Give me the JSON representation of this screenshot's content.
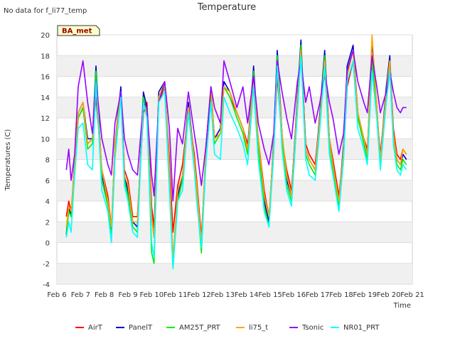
{
  "note": "No data for f_li77_temp",
  "chart_data": {
    "type": "line",
    "title": "Temperature",
    "xlabel": "Time",
    "ylabel": "Temperatures (C)",
    "ylim": [
      -4,
      20
    ],
    "yticks": [
      -4,
      -2,
      0,
      2,
      4,
      6,
      8,
      10,
      12,
      14,
      16,
      18,
      20
    ],
    "xlim": [
      0,
      15
    ],
    "xtick_labels": [
      "Feb 6",
      "Feb 7",
      "Feb 8",
      "Feb 9",
      "Feb 10",
      "Feb 11",
      "Feb 12",
      "Feb 13",
      "Feb 14",
      "Feb 15",
      "Feb 16",
      "Feb 17",
      "Feb 18",
      "Feb 19",
      "Feb 20",
      "Feb 21"
    ],
    "grid": true,
    "legend_position": "bottom",
    "site_label": "BA_met",
    "x": [
      0.4,
      0.5,
      0.6,
      0.75,
      0.9,
      1.1,
      1.3,
      1.5,
      1.65,
      1.9,
      2.15,
      2.3,
      2.45,
      2.7,
      2.85,
      3.0,
      3.2,
      3.4,
      3.65,
      3.8,
      4.0,
      4.1,
      4.3,
      4.55,
      4.75,
      4.9,
      5.1,
      5.3,
      5.55,
      5.8,
      5.9,
      6.1,
      6.3,
      6.5,
      6.65,
      6.9,
      7.05,
      7.3,
      7.6,
      7.85,
      8.05,
      8.3,
      8.5,
      8.75,
      8.95,
      9.15,
      9.3,
      9.5,
      9.7,
      9.9,
      10.15,
      10.3,
      10.5,
      10.65,
      10.9,
      11.1,
      11.3,
      11.5,
      11.65,
      11.9,
      12.1,
      12.25,
      12.5,
      12.7,
      12.95,
      13.1,
      13.3,
      13.5,
      13.65,
      13.9,
      14.05,
      14.2,
      14.35,
      14.5,
      14.6,
      14.75
    ],
    "series": [
      {
        "name": "AirT",
        "color": "#ff0000",
        "values": [
          2.5,
          4.0,
          3.0,
          7.0,
          12.0,
          13.0,
          9.5,
          10.0,
          14.0,
          7.0,
          4.5,
          1.5,
          9.0,
          14.5,
          7.0,
          6.0,
          2.5,
          2.5,
          12.5,
          13.5,
          3.5,
          1.5,
          13.5,
          15.0,
          8.0,
          1.0,
          5.5,
          7.5,
          12.5,
          8.5,
          6.0,
          0.5,
          9.0,
          14.5,
          10.0,
          10.5,
          15.0,
          14.0,
          12.5,
          11.0,
          9.5,
          15.0,
          10.0,
          5.0,
          2.5,
          9.0,
          16.0,
          10.0,
          7.0,
          5.0,
          13.0,
          18.5,
          9.5,
          8.5,
          7.5,
          12.0,
          16.5,
          10.0,
          8.0,
          4.5,
          8.5,
          15.0,
          17.5,
          12.0,
          10.0,
          9.0,
          17.0,
          12.5,
          8.5,
          14.0,
          17.5,
          11.0,
          8.5,
          8.0,
          9.0,
          8.5
        ]
      },
      {
        "name": "PanelT",
        "color": "#0000cc",
        "values": [
          0.8,
          3.5,
          2.5,
          8.0,
          12.5,
          13.5,
          10.0,
          10.0,
          17.0,
          6.5,
          4.0,
          1.0,
          9.5,
          15.0,
          6.5,
          5.0,
          2.0,
          1.5,
          14.5,
          13.0,
          2.5,
          0.5,
          14.5,
          15.5,
          6.5,
          -2.0,
          4.5,
          6.5,
          13.5,
          8.0,
          5.0,
          -0.5,
          9.5,
          15.0,
          10.0,
          11.0,
          15.5,
          14.5,
          12.5,
          11.0,
          9.0,
          17.0,
          9.5,
          4.0,
          2.0,
          10.0,
          18.5,
          10.5,
          6.0,
          4.5,
          14.0,
          19.5,
          9.0,
          8.0,
          7.0,
          12.5,
          18.5,
          10.0,
          7.5,
          4.0,
          9.5,
          17.0,
          19.0,
          12.5,
          10.0,
          8.5,
          19.5,
          13.0,
          8.0,
          15.0,
          18.0,
          10.5,
          8.0,
          7.5,
          8.5,
          8.0
        ]
      },
      {
        "name": "AM25T_PRT",
        "color": "#00ee00",
        "values": [
          0.7,
          3.0,
          2.5,
          7.5,
          12.0,
          13.0,
          9.0,
          9.5,
          16.5,
          6.0,
          3.5,
          0.5,
          9.0,
          14.5,
          6.0,
          4.5,
          1.5,
          1.0,
          14.0,
          12.5,
          -1.0,
          -2.0,
          14.0,
          15.0,
          6.0,
          -2.5,
          4.0,
          6.0,
          13.0,
          7.5,
          4.5,
          -1.0,
          9.0,
          14.5,
          9.5,
          10.5,
          15.0,
          14.0,
          12.0,
          10.5,
          8.5,
          16.5,
          9.0,
          3.5,
          1.5,
          9.5,
          18.0,
          10.0,
          5.5,
          4.0,
          13.5,
          19.0,
          8.5,
          7.5,
          6.5,
          12.0,
          18.0,
          9.5,
          7.0,
          3.5,
          9.0,
          16.5,
          18.5,
          12.0,
          9.5,
          8.0,
          17.5,
          12.5,
          7.5,
          14.5,
          17.5,
          10.0,
          7.5,
          7.0,
          8.0,
          7.5
        ]
      },
      {
        "name": "li75_t",
        "color": "#ffa500",
        "values": [
          1.5,
          3.5,
          3.0,
          7.5,
          12.5,
          13.5,
          9.5,
          10.0,
          15.5,
          7.0,
          4.0,
          1.5,
          9.5,
          14.5,
          6.5,
          5.5,
          2.0,
          2.0,
          13.5,
          13.0,
          2.5,
          0.5,
          14.0,
          15.5,
          7.0,
          -1.5,
          5.0,
          6.5,
          13.0,
          8.0,
          5.5,
          0.0,
          9.5,
          15.0,
          10.0,
          10.5,
          15.0,
          14.5,
          12.5,
          11.0,
          9.0,
          16.0,
          10.0,
          4.5,
          2.5,
          9.5,
          17.5,
          10.5,
          6.5,
          4.5,
          13.5,
          18.5,
          9.0,
          8.0,
          7.0,
          12.0,
          17.5,
          10.0,
          7.5,
          4.0,
          9.0,
          16.0,
          18.5,
          12.5,
          10.0,
          8.5,
          20.0,
          13.0,
          8.0,
          14.5,
          17.5,
          10.5,
          8.0,
          7.5,
          9.0,
          8.5
        ]
      },
      {
        "name": "Tsonic",
        "color": "#9900ff",
        "values": [
          7.0,
          9.0,
          6.0,
          8.5,
          15.0,
          17.5,
          13.5,
          10.5,
          15.5,
          10.0,
          7.5,
          6.5,
          11.5,
          14.5,
          10.0,
          8.5,
          7.0,
          6.5,
          13.5,
          13.0,
          6.5,
          4.5,
          13.5,
          15.5,
          11.0,
          4.0,
          11.0,
          9.5,
          14.5,
          10.5,
          9.0,
          5.5,
          9.5,
          15.0,
          13.0,
          11.5,
          17.5,
          15.5,
          13.0,
          15.0,
          11.5,
          16.0,
          11.5,
          9.0,
          7.5,
          10.5,
          17.5,
          14.5,
          12.0,
          10.0,
          15.5,
          17.5,
          13.5,
          15.0,
          11.5,
          13.5,
          16.5,
          13.5,
          12.0,
          8.5,
          10.5,
          16.5,
          18.5,
          15.5,
          13.5,
          12.5,
          18.0,
          15.0,
          12.5,
          14.5,
          16.5,
          14.5,
          13.0,
          12.5,
          13.0,
          13.0
        ]
      },
      {
        "name": "NR01_PRT",
        "color": "#00ffff",
        "values": [
          0.5,
          2.0,
          1.0,
          6.5,
          11.0,
          11.5,
          7.5,
          7.0,
          15.5,
          5.0,
          3.0,
          0.0,
          8.0,
          14.0,
          5.5,
          4.0,
          1.0,
          0.5,
          13.5,
          12.0,
          0.0,
          -1.5,
          13.5,
          14.5,
          5.0,
          -2.5,
          4.0,
          5.0,
          12.5,
          7.0,
          4.0,
          -0.5,
          8.0,
          13.5,
          8.5,
          8.0,
          14.0,
          12.5,
          11.0,
          9.5,
          7.5,
          15.0,
          8.0,
          3.0,
          1.5,
          8.5,
          17.0,
          9.0,
          5.0,
          3.5,
          12.5,
          18.0,
          8.0,
          6.5,
          6.0,
          11.0,
          17.0,
          8.5,
          6.5,
          3.0,
          8.0,
          15.5,
          17.5,
          11.0,
          9.0,
          7.5,
          16.5,
          12.0,
          7.0,
          13.5,
          16.5,
          9.5,
          7.0,
          6.5,
          7.5,
          7.0
        ]
      }
    ]
  }
}
